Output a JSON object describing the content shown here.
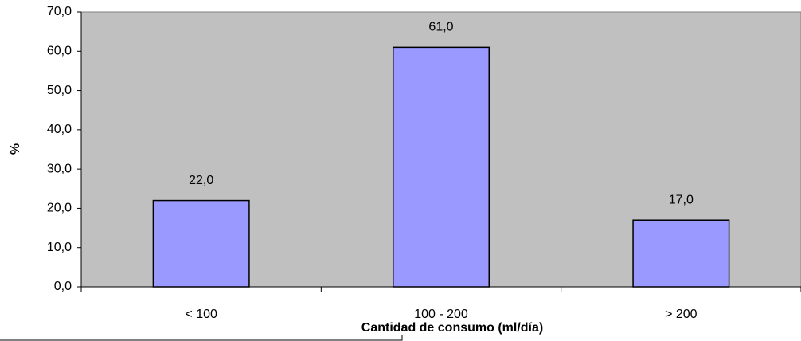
{
  "chart_data": {
    "type": "bar",
    "categories": [
      "< 100",
      "100 - 200",
      "> 200"
    ],
    "values": [
      22,
      61,
      17
    ],
    "value_labels": [
      "22,0",
      "61,0",
      "17,0"
    ],
    "color": "#9999ff",
    "x_label": "Cantidad de consumo (ml/día)",
    "y_label": "%",
    "ylim": [
      0,
      70
    ],
    "yticks": [
      {
        "value": 0,
        "label": "0,0"
      },
      {
        "value": 10,
        "label": "10,0"
      },
      {
        "value": 20,
        "label": "20,0"
      },
      {
        "value": 30,
        "label": "30,0"
      },
      {
        "value": 40,
        "label": "40,0"
      },
      {
        "value": 50,
        "label": "50,0"
      },
      {
        "value": 60,
        "label": "60,0"
      },
      {
        "value": 70,
        "label": "70,0"
      }
    ],
    "grid": false
  }
}
